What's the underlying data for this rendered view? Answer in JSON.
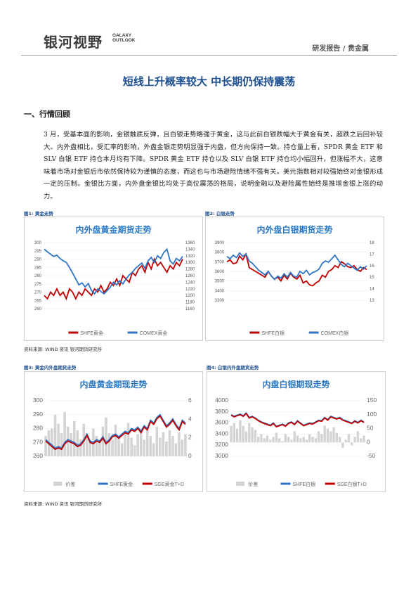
{
  "header": {
    "logo_cn": "银河视野",
    "logo_en_top": "GALAXY",
    "logo_en_bottom": "OUTLOOK",
    "category": "研发报告 / 贵金属"
  },
  "title": "短线上升概率较大 中长期仍保持震荡",
  "section": "一、行情回顾",
  "body": "3 月，受基本面的影响，金银触底反弹，且白银走势略强于黄金，这与此前白银跌幅大于黄金有关，超跌之后回补较大。内外盘相比，受汇率的影响，外盘金银走势明显强于内盘，但方向保持一致。持仓量上看，SPDR 黄金 ETF 和 SLV 白银 ETF 持仓本月均有下降。SPDR 黄金 ETF 持仓以及 SLV 白银 ETF 持仓均小幅回升，但涨幅不大，这意味着市场对金银后市依然保持较为谨慎的态度，而这也与市场避险情绪不强有关。美元指数相对较强始终对金银形成一定的压制。金银比方面，内外盘金银比均处于高位震荡的格局，说明金融以及避险属性始终是推增金银上涨的动力。",
  "colors": {
    "red": "#c00000",
    "blue": "#2e75c9",
    "gray": "#d0d0d0",
    "title_blue": "#1d4f91"
  },
  "figures": [
    {
      "label": "图1: 黄金走势"
    },
    {
      "label": "图2: 白银走势"
    },
    {
      "label": "图3: 黄金内外盘期货走势"
    },
    {
      "label": "图4: 白银内外盘期货走势"
    }
  ],
  "sources": [
    "资料来源: WIND 资讯    银河期货研究所",
    "资料来源: WIND 资讯    银河期货研究所"
  ],
  "chart_data": [
    {
      "type": "line",
      "title": "内外盘黄金期货走势",
      "series": [
        {
          "name": "SHFE黄金",
          "axis": "left",
          "values": [
            268,
            266,
            270,
            268,
            272,
            268,
            270,
            266,
            272,
            270,
            266,
            270,
            268,
            272,
            270,
            268,
            272,
            270,
            274,
            270,
            272,
            276,
            274,
            278,
            274,
            280,
            278,
            276,
            282,
            280,
            284,
            286,
            282,
            288,
            284,
            290,
            286,
            288,
            285,
            282,
            286,
            284,
            288,
            286,
            290
          ]
        },
        {
          "name": "COMEX黄金",
          "axis": "right",
          "values": [
            1340,
            1332,
            1325,
            1318,
            1322,
            1312,
            1305,
            1300,
            1285,
            1268,
            1250,
            1232,
            1238,
            1226,
            1236,
            1215,
            1205,
            1220,
            1212,
            1205,
            1215,
            1225,
            1240,
            1232,
            1245,
            1235,
            1250,
            1262,
            1270,
            1282,
            1290,
            1298,
            1282,
            1305,
            1315,
            1300,
            1320,
            1312,
            1330,
            1340,
            1305,
            1295,
            1312,
            1305,
            1318
          ]
        }
      ],
      "ylim_left": [
        260,
        300
      ],
      "yticks_left": [
        260,
        265,
        270,
        275,
        280,
        285,
        290,
        295,
        300
      ],
      "ylim_right": [
        1160,
        1360
      ],
      "yticks_right": [
        1160,
        1180,
        1200,
        1220,
        1240,
        1260,
        1280,
        1300,
        1320,
        1340,
        1360
      ]
    },
    {
      "type": "line",
      "title": "内外盘白银期货走势",
      "series": [
        {
          "name": "SHFE白银",
          "axis": "left",
          "values": [
            3700,
            3720,
            3680,
            3690,
            3760,
            3720,
            3780,
            3640,
            3620,
            3600,
            3580,
            3560,
            3540,
            3600,
            3550,
            3520,
            3540,
            3500,
            3560,
            3520,
            3580,
            3540,
            3520,
            3560,
            3480,
            3500,
            3460,
            3450,
            3480,
            3500,
            3560,
            3540,
            3600,
            3620,
            3660,
            3640,
            3700,
            3680,
            3650,
            3640,
            3660,
            3620,
            3600,
            3640,
            3620
          ]
        },
        {
          "name": "COMEX白银",
          "axis": "right",
          "values": [
            16.8,
            16.6,
            16.9,
            16.7,
            17.1,
            16.8,
            17.0,
            16.4,
            16.2,
            15.9,
            15.6,
            15.4,
            15.2,
            15.5,
            15.1,
            14.8,
            15.1,
            14.9,
            15.3,
            15.0,
            15.4,
            15.1,
            15.0,
            15.5,
            15.3,
            15.6,
            15.2,
            15.4,
            15.5,
            15.7,
            16.2,
            16.4,
            16.3,
            16.6,
            16.9,
            16.5,
            16.1,
            15.9,
            16.2,
            16.0,
            15.8,
            15.6,
            15.9,
            15.7,
            16.0
          ]
        }
      ],
      "ylim_left": [
        3300,
        3900
      ],
      "yticks_left": [
        3300,
        3400,
        3500,
        3600,
        3700,
        3800,
        3900
      ],
      "ylim_right": [
        13,
        18
      ],
      "yticks_right": [
        13,
        14,
        15,
        16,
        17,
        18
      ]
    },
    {
      "type": "line",
      "title": "内盘黄金期现走势",
      "series": [
        {
          "name": "价差",
          "axis": "right",
          "kind": "area",
          "values": [
            2.2,
            2.8,
            3.0,
            4.5,
            3.5,
            2.5,
            4.8,
            3.2,
            2.5,
            3.8,
            2.8,
            1.8,
            3.5,
            2.0,
            1.5,
            3.0,
            2.2,
            1.6,
            3.2,
            4.2,
            2.5,
            1.8,
            3.4,
            2.2,
            1.4,
            2.6,
            3.6,
            2.0,
            1.2,
            2.4,
            3.0,
            1.8,
            2.8,
            2.2,
            1.4,
            3.2,
            2.0,
            2.6,
            1.6,
            2.8,
            2.2,
            1.4,
            2.6,
            1.8,
            2.4
          ]
        },
        {
          "name": "SHFE黄金",
          "axis": "left",
          "values": [
            272,
            270,
            268,
            266,
            267,
            266,
            270,
            272,
            271,
            270,
            268,
            269,
            272,
            276,
            271,
            270,
            272,
            271,
            274,
            270,
            272,
            275,
            276,
            274,
            276,
            278,
            277,
            280,
            279,
            281,
            278,
            282,
            280,
            286,
            284,
            288,
            290,
            286,
            282,
            284,
            287,
            283,
            280,
            286,
            284
          ]
        },
        {
          "name": "SGE黄金T+D",
          "axis": "left",
          "values": [
            271,
            269,
            267,
            265,
            266,
            265,
            269,
            271,
            270,
            269,
            267,
            268,
            271,
            275,
            270,
            269,
            271,
            270,
            273,
            269,
            271,
            274,
            275,
            273,
            275,
            277,
            276,
            279,
            278,
            280,
            277,
            281,
            279,
            285,
            283,
            287,
            289,
            285,
            281,
            283,
            286,
            282,
            279,
            285,
            283
          ]
        }
      ],
      "ylim_left": [
        260,
        300
      ],
      "yticks_left": [
        260,
        270,
        280,
        290,
        300
      ],
      "ylim_right": [
        0,
        6
      ],
      "yticks_right": [
        0,
        2,
        4,
        6
      ]
    },
    {
      "type": "line",
      "title": "内盘白银期现走势",
      "series": [
        {
          "name": "价差",
          "axis": "right",
          "kind": "area",
          "values": [
            60,
            70,
            50,
            80,
            60,
            40,
            70,
            55,
            45,
            20,
            30,
            15,
            25,
            10,
            20,
            35,
            15,
            5,
            30,
            20,
            10,
            40,
            25,
            15,
            20,
            10,
            30,
            20,
            15,
            40,
            30,
            60,
            50,
            40,
            55,
            35,
            20,
            -20,
            10,
            30,
            -10,
            20,
            40,
            15,
            25
          ]
        },
        {
          "name": "SHFE白银",
          "axis": "left",
          "values": [
            3750,
            3720,
            3740,
            3760,
            3730,
            3780,
            3700,
            3720,
            3690,
            3650,
            3620,
            3600,
            3580,
            3560,
            3600,
            3540,
            3560,
            3580,
            3550,
            3600,
            3620,
            3580,
            3640,
            3600,
            3560,
            3580,
            3600,
            3590,
            3620,
            3650,
            3640,
            3700,
            3660,
            3720,
            3700,
            3680,
            3700,
            3660,
            3640,
            3620,
            3600,
            3640,
            3610,
            3650,
            3620
          ]
        },
        {
          "name": "SGE白银T+D",
          "axis": "left",
          "values": [
            3740,
            3710,
            3730,
            3750,
            3720,
            3770,
            3690,
            3710,
            3680,
            3640,
            3610,
            3590,
            3570,
            3550,
            3590,
            3530,
            3550,
            3570,
            3540,
            3590,
            3610,
            3570,
            3630,
            3590,
            3550,
            3570,
            3590,
            3580,
            3610,
            3640,
            3630,
            3690,
            3650,
            3710,
            3690,
            3670,
            3690,
            3650,
            3630,
            3610,
            3590,
            3630,
            3600,
            3640,
            3610
          ]
        }
      ],
      "ylim_left": [
        3000,
        4000
      ],
      "yticks_left": [
        3000,
        3200,
        3400,
        3600,
        3800,
        4000
      ],
      "ylim_right": [
        -50,
        150
      ],
      "yticks_right": [
        -50,
        0,
        50,
        100,
        150
      ]
    }
  ]
}
